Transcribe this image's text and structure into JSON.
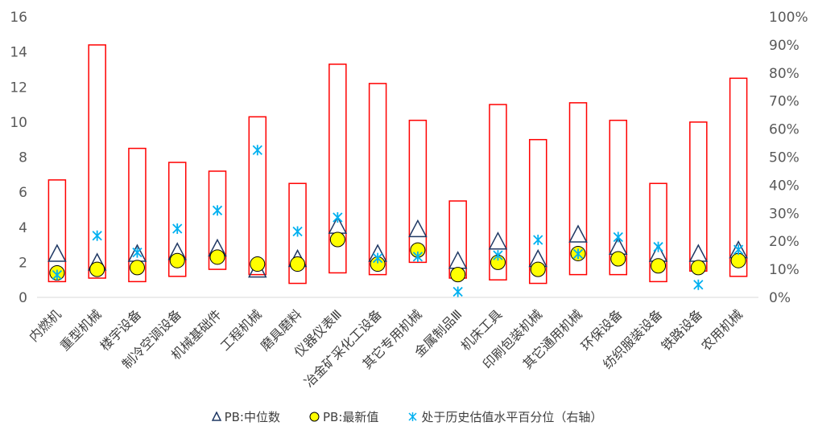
{
  "chart_data": {
    "type": "box-range",
    "categories": [
      "内燃机",
      "重型机械",
      "楼宇设备",
      "制冷空调设备",
      "机械基础件",
      "工程机械",
      "磨具磨料",
      "仪器仪表Ⅲ",
      "冶金矿采化工设备",
      "其它专用机械",
      "金属制品Ⅲ",
      "机床工具",
      "印刷包装机械",
      "其它通用机械",
      "环保设备",
      "纺织服装设备",
      "铁路设备",
      "农用机械"
    ],
    "range_high": [
      6.7,
      14.4,
      8.5,
      7.7,
      7.2,
      10.3,
      6.5,
      13.3,
      12.2,
      10.1,
      5.5,
      11.0,
      9.0,
      11.1,
      10.1,
      6.5,
      10.0,
      12.5
    ],
    "range_low": [
      0.9,
      1.1,
      0.9,
      1.2,
      1.6,
      1.3,
      0.8,
      1.4,
      1.3,
      2.0,
      1.1,
      1.0,
      0.8,
      1.3,
      1.3,
      0.9,
      1.5,
      1.2
    ],
    "series": [
      {
        "name": "PB:中位数",
        "axis": "left",
        "marker": "triangle",
        "values": [
          2.5,
          2.0,
          2.5,
          2.6,
          2.8,
          1.6,
          2.2,
          4.1,
          2.5,
          3.9,
          2.1,
          3.2,
          2.2,
          3.6,
          2.9,
          2.5,
          2.5,
          2.7
        ]
      },
      {
        "name": "PB:最新值",
        "axis": "left",
        "marker": "circle",
        "values": [
          1.4,
          1.6,
          1.7,
          2.1,
          2.3,
          1.9,
          1.9,
          3.3,
          1.9,
          2.7,
          1.3,
          2.0,
          1.6,
          2.5,
          2.2,
          1.8,
          1.7,
          2.1
        ]
      },
      {
        "name": "处于历史估值水平百分位（右轴）",
        "axis": "right",
        "marker": "asterisk",
        "values": [
          0.08,
          0.22,
          0.16,
          0.245,
          0.31,
          0.525,
          0.235,
          0.285,
          0.14,
          0.145,
          0.02,
          0.15,
          0.205,
          0.155,
          0.215,
          0.18,
          0.045,
          0.17
        ]
      }
    ],
    "ylim_left": [
      0,
      16
    ],
    "yticks_left": [
      "0",
      "2",
      "4",
      "6",
      "8",
      "10",
      "12",
      "14",
      "16"
    ],
    "ylim_right": [
      0,
      1
    ],
    "yticks_right": [
      "0%",
      "10%",
      "20%",
      "30%",
      "40%",
      "50%",
      "60%",
      "70%",
      "80%",
      "90%",
      "100%"
    ],
    "grid": false,
    "legend_position": "bottom",
    "colors": {
      "range": "#ff0000",
      "triangle": "#1f3864",
      "circle_fill": "#ffff00",
      "circle_stroke": "#000000",
      "asterisk": "#00b0f0"
    }
  }
}
